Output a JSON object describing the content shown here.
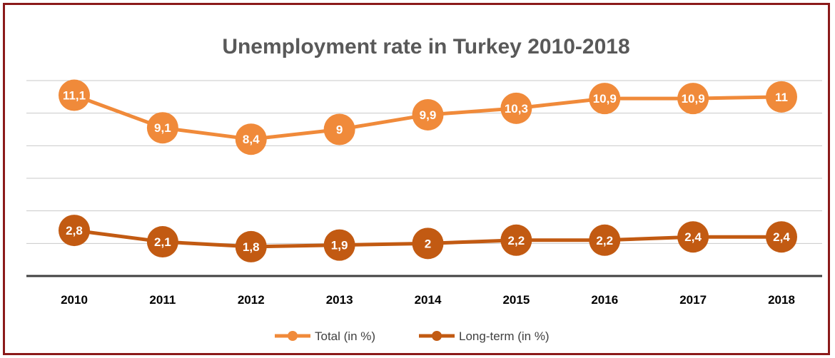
{
  "chart_data": {
    "type": "line",
    "title": "Unemployment rate in Turkey 2010-2018",
    "xlabel": "",
    "ylabel": "",
    "categories": [
      "2010",
      "2011",
      "2012",
      "2013",
      "2014",
      "2015",
      "2016",
      "2017",
      "2018"
    ],
    "series": [
      {
        "name": "Total (in %)",
        "color": "#f08a3a",
        "values": [
          11.1,
          9.1,
          8.4,
          9,
          9.9,
          10.3,
          10.9,
          10.9,
          11
        ],
        "labels": [
          "11,1",
          "9,1",
          "8,4",
          "9",
          "9,9",
          "10,3",
          "10,9",
          "10,9",
          "11"
        ]
      },
      {
        "name": "Long-term (in %)",
        "color": "#c25a12",
        "values": [
          2.8,
          2.1,
          1.8,
          1.9,
          2,
          2.2,
          2.2,
          2.4,
          2.4
        ],
        "labels": [
          "2,8",
          "2,1",
          "1,8",
          "1,9",
          "2",
          "2,2",
          "2,2",
          "2,4",
          "2,4"
        ]
      }
    ],
    "ylim": [
      0,
      12
    ],
    "grid": true,
    "legend": "bottom"
  }
}
